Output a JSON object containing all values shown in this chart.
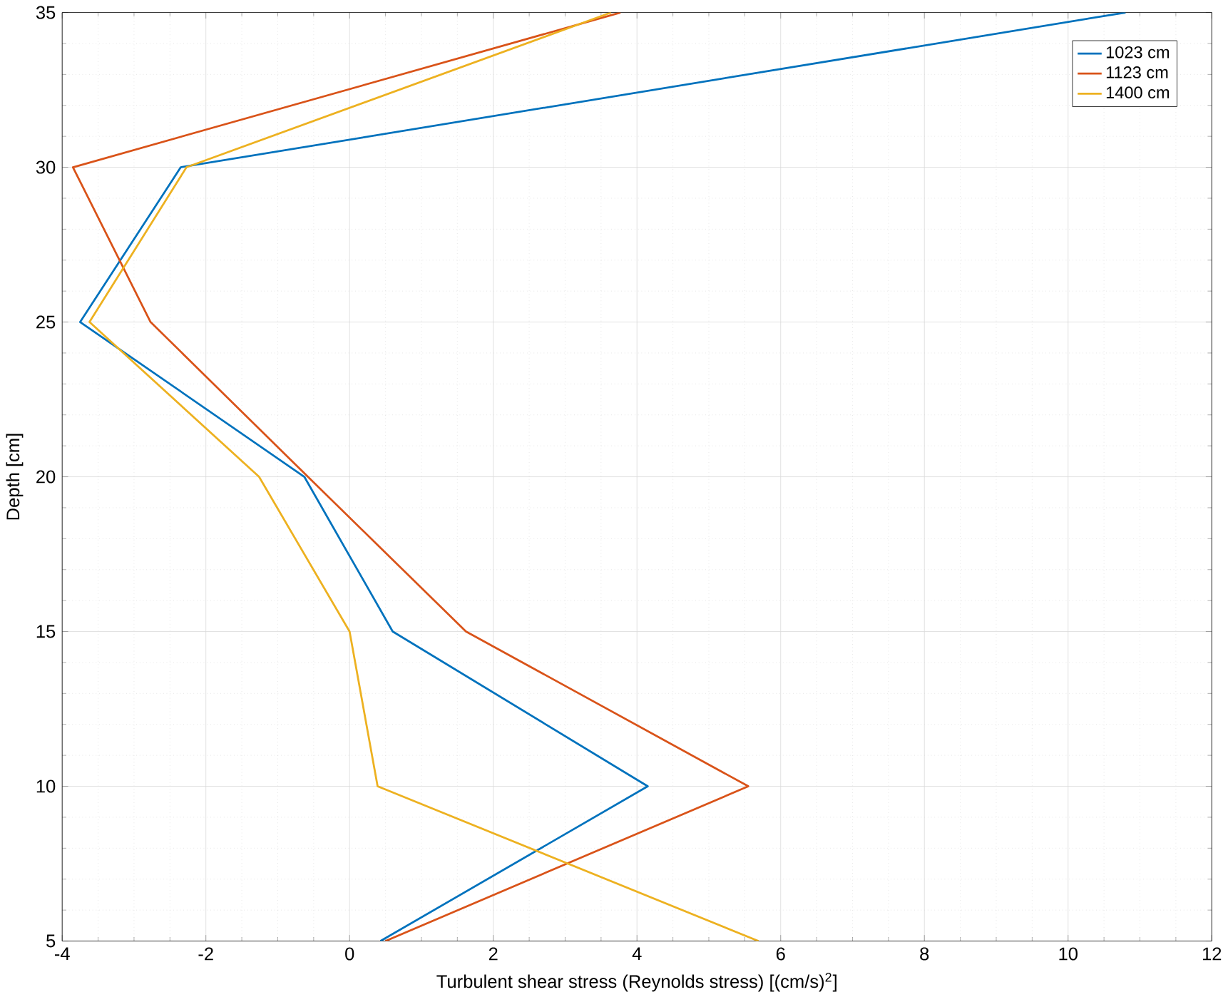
{
  "chart_data": {
    "type": "line",
    "xlabel": "Turbulent shear stress (Reynolds stress) [(cm/s)$^{2}$]",
    "ylabel": "Depth [cm]",
    "xlim": [
      -4,
      12
    ],
    "xticks": [
      -4,
      -2,
      0,
      2,
      4,
      6,
      8,
      10,
      12
    ],
    "ylim": [
      5,
      35
    ],
    "yticks": [
      5,
      10,
      15,
      20,
      25,
      30,
      35
    ],
    "grid": true,
    "legend": "top right",
    "marker": "none",
    "line_style": "solid",
    "series": [
      {
        "name": "1023 cm",
        "color": "#0072bd",
        "x": [
          0.43,
          4.15,
          0.6,
          -0.63,
          -3.75,
          -2.35,
          10.8
        ],
        "values": [
          5,
          10,
          15,
          20,
          25,
          30,
          35
        ]
      },
      {
        "name": "1123 cm",
        "color": "#d95319",
        "x": [
          0.5,
          5.55,
          1.62,
          -0.58,
          -2.77,
          -3.85,
          3.77
        ],
        "values": [
          5,
          10,
          15,
          20,
          25,
          30,
          35
        ]
      },
      {
        "name": "1400 cm",
        "color": "#edb120",
        "x": [
          5.69,
          0.39,
          0.0,
          -1.26,
          -3.62,
          -2.27,
          3.64
        ],
        "values": [
          5,
          10,
          15,
          20,
          25,
          30,
          35
        ]
      }
    ]
  }
}
